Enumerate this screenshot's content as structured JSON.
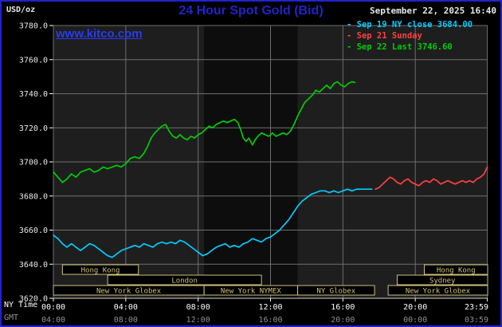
{
  "header": {
    "unit_label": "USD/oz",
    "title": "24 Hour Spot Gold (Bid)",
    "timestamp": "September 22, 2025 16:40",
    "watermark": "www.kitco.com"
  },
  "legend": {
    "items": [
      {
        "label": "- Sep 19 NY close 3684.00",
        "color": "#00ccff"
      },
      {
        "label": "- Sep 21 Sunday",
        "color": "#ff4040"
      },
      {
        "label": "- Sep 22 Last 3746.60",
        "color": "#00cc00"
      }
    ]
  },
  "colors": {
    "frame_border": "#2121cd",
    "background": "#000000",
    "plot_bg": "#1e1e1e",
    "nymex_band": "#0d0d0d",
    "grid": "#6e6e6e",
    "axis_line": "#cfcfcf",
    "tick_text": "#e8e8e8",
    "session": "#cdc07c",
    "title_blue": "#2222cc",
    "link_blue": "#2a3bf0",
    "gmt_text": "#909090"
  },
  "chart_data": {
    "type": "line",
    "title": "24 Hour Spot Gold (Bid)",
    "ylabel": "USD/oz",
    "ylim": [
      3620,
      3780
    ],
    "ytick_step": 20,
    "yticks": [
      3620,
      3640,
      3660,
      3680,
      3700,
      3720,
      3740,
      3760,
      3780
    ],
    "xlim_hours": [
      0,
      24
    ],
    "xtick_hours": [
      0,
      4,
      8,
      12,
      16,
      20,
      23.983
    ],
    "x_axis_rows": [
      {
        "name": "NY Time",
        "color": "#ffffff",
        "labels": [
          "00:00",
          "04:00",
          "08:00",
          "12:00",
          "16:00",
          "20:00",
          "23:59"
        ]
      },
      {
        "name": "GMT",
        "color": "#909090",
        "labels": [
          "04:00",
          "08:00",
          "12:00",
          "16:00",
          "20:00",
          "00:00",
          "03:59"
        ]
      }
    ],
    "nymex_band_hours": [
      8.33,
      13.5
    ],
    "grid": true,
    "legend_position": "top-right",
    "sessions": [
      {
        "row": 0,
        "start": 0.5,
        "end": 4.7,
        "label": "Hong Kong"
      },
      {
        "row": 0,
        "start": 20.5,
        "end": 24,
        "label": "Hong Kong"
      },
      {
        "row": 1,
        "start": 3,
        "end": 11.5,
        "label": "London"
      },
      {
        "row": 1,
        "start": 19,
        "end": 24,
        "label": "Sydney"
      },
      {
        "row": 2,
        "start": 0,
        "end": 8.33,
        "label": "New York Globex"
      },
      {
        "row": 2,
        "start": 8.33,
        "end": 13.5,
        "label": "New York NYMEX"
      },
      {
        "row": 2,
        "start": 13.5,
        "end": 17.75,
        "label": "NY Globex"
      },
      {
        "row": 2,
        "start": 18.5,
        "end": 24,
        "label": "New York Globex"
      }
    ],
    "series": [
      {
        "id": "sep19",
        "name": "Sep 19 NY close 3684.00",
        "color": "#00ccff",
        "points": [
          [
            0,
            3657
          ],
          [
            0.25,
            3655
          ],
          [
            0.5,
            3652
          ],
          [
            0.75,
            3650
          ],
          [
            1,
            3652
          ],
          [
            1.25,
            3650
          ],
          [
            1.5,
            3648
          ],
          [
            1.75,
            3650
          ],
          [
            2,
            3652
          ],
          [
            2.25,
            3651
          ],
          [
            2.5,
            3649
          ],
          [
            2.75,
            3647
          ],
          [
            3,
            3645
          ],
          [
            3.25,
            3644
          ],
          [
            3.5,
            3646
          ],
          [
            3.75,
            3648
          ],
          [
            4,
            3649
          ],
          [
            4.25,
            3650
          ],
          [
            4.5,
            3651
          ],
          [
            4.75,
            3650
          ],
          [
            5,
            3652
          ],
          [
            5.25,
            3651
          ],
          [
            5.5,
            3650
          ],
          [
            5.75,
            3652
          ],
          [
            6,
            3653
          ],
          [
            6.25,
            3652
          ],
          [
            6.5,
            3653
          ],
          [
            6.75,
            3652
          ],
          [
            7,
            3654
          ],
          [
            7.25,
            3653
          ],
          [
            7.5,
            3651
          ],
          [
            7.75,
            3649
          ],
          [
            8,
            3647
          ],
          [
            8.25,
            3645
          ],
          [
            8.5,
            3646
          ],
          [
            8.75,
            3648
          ],
          [
            9,
            3650
          ],
          [
            9.25,
            3651
          ],
          [
            9.5,
            3652
          ],
          [
            9.75,
            3650
          ],
          [
            10,
            3651
          ],
          [
            10.25,
            3650
          ],
          [
            10.5,
            3652
          ],
          [
            10.75,
            3653
          ],
          [
            11,
            3655
          ],
          [
            11.25,
            3654
          ],
          [
            11.5,
            3653
          ],
          [
            11.75,
            3655
          ],
          [
            12,
            3656
          ],
          [
            12.25,
            3658
          ],
          [
            12.5,
            3660
          ],
          [
            12.75,
            3663
          ],
          [
            13,
            3666
          ],
          [
            13.25,
            3670
          ],
          [
            13.5,
            3674
          ],
          [
            13.75,
            3677
          ],
          [
            14,
            3679
          ],
          [
            14.25,
            3681
          ],
          [
            14.5,
            3682
          ],
          [
            14.75,
            3683
          ],
          [
            15,
            3683
          ],
          [
            15.25,
            3682
          ],
          [
            15.5,
            3683
          ],
          [
            15.75,
            3682
          ],
          [
            16,
            3683
          ],
          [
            16.25,
            3684
          ],
          [
            16.5,
            3683
          ],
          [
            16.75,
            3684
          ],
          [
            17,
            3684
          ],
          [
            17.3,
            3684
          ],
          [
            17.6,
            3684
          ]
        ]
      },
      {
        "id": "sep21",
        "name": "Sep 21 Sunday",
        "color": "#ff4040",
        "points": [
          [
            17.8,
            3684
          ],
          [
            18,
            3685
          ],
          [
            18.2,
            3687
          ],
          [
            18.4,
            3689
          ],
          [
            18.6,
            3691
          ],
          [
            18.8,
            3690
          ],
          [
            19,
            3688
          ],
          [
            19.2,
            3687
          ],
          [
            19.4,
            3689
          ],
          [
            19.6,
            3690
          ],
          [
            19.8,
            3688
          ],
          [
            20,
            3687
          ],
          [
            20.2,
            3686
          ],
          [
            20.4,
            3688
          ],
          [
            20.6,
            3689
          ],
          [
            20.8,
            3688
          ],
          [
            21,
            3690
          ],
          [
            21.2,
            3689
          ],
          [
            21.4,
            3687
          ],
          [
            21.6,
            3688
          ],
          [
            21.8,
            3689
          ],
          [
            22,
            3688
          ],
          [
            22.2,
            3687
          ],
          [
            22.4,
            3688
          ],
          [
            22.6,
            3689
          ],
          [
            22.8,
            3688
          ],
          [
            23,
            3689
          ],
          [
            23.2,
            3688
          ],
          [
            23.4,
            3690
          ],
          [
            23.6,
            3691
          ],
          [
            23.8,
            3693
          ],
          [
            23.98,
            3697
          ]
        ]
      },
      {
        "id": "sep22",
        "name": "Sep 22 Last 3746.60",
        "color": "#00cc00",
        "points": [
          [
            0,
            3694
          ],
          [
            0.25,
            3691
          ],
          [
            0.5,
            3688
          ],
          [
            0.75,
            3690
          ],
          [
            1,
            3693
          ],
          [
            1.25,
            3691
          ],
          [
            1.5,
            3694
          ],
          [
            1.75,
            3695
          ],
          [
            2,
            3696
          ],
          [
            2.25,
            3694
          ],
          [
            2.5,
            3695
          ],
          [
            2.75,
            3697
          ],
          [
            3,
            3696
          ],
          [
            3.25,
            3697
          ],
          [
            3.5,
            3698
          ],
          [
            3.75,
            3697
          ],
          [
            4,
            3699
          ],
          [
            4.25,
            3702
          ],
          [
            4.5,
            3703
          ],
          [
            4.75,
            3702
          ],
          [
            5,
            3705
          ],
          [
            5.2,
            3709
          ],
          [
            5.4,
            3714
          ],
          [
            5.6,
            3717
          ],
          [
            5.8,
            3719
          ],
          [
            6,
            3721
          ],
          [
            6.2,
            3722
          ],
          [
            6.4,
            3718
          ],
          [
            6.6,
            3715
          ],
          [
            6.8,
            3714
          ],
          [
            7,
            3716
          ],
          [
            7.2,
            3714
          ],
          [
            7.4,
            3713
          ],
          [
            7.6,
            3715
          ],
          [
            7.8,
            3714
          ],
          [
            8,
            3716
          ],
          [
            8.2,
            3717
          ],
          [
            8.4,
            3719
          ],
          [
            8.6,
            3721
          ],
          [
            8.8,
            3720
          ],
          [
            9,
            3722
          ],
          [
            9.2,
            3723
          ],
          [
            9.4,
            3724
          ],
          [
            9.6,
            3723
          ],
          [
            9.8,
            3724
          ],
          [
            10,
            3725
          ],
          [
            10.2,
            3723
          ],
          [
            10.35,
            3719
          ],
          [
            10.5,
            3714
          ],
          [
            10.65,
            3712
          ],
          [
            10.8,
            3714
          ],
          [
            11,
            3710
          ],
          [
            11.15,
            3713
          ],
          [
            11.3,
            3715
          ],
          [
            11.5,
            3717
          ],
          [
            11.7,
            3716
          ],
          [
            11.9,
            3715
          ],
          [
            12.1,
            3717
          ],
          [
            12.3,
            3715
          ],
          [
            12.5,
            3716
          ],
          [
            12.7,
            3717
          ],
          [
            12.9,
            3716
          ],
          [
            13.1,
            3718
          ],
          [
            13.3,
            3722
          ],
          [
            13.5,
            3727
          ],
          [
            13.7,
            3731
          ],
          [
            13.9,
            3735
          ],
          [
            14.1,
            3737
          ],
          [
            14.3,
            3739
          ],
          [
            14.5,
            3742
          ],
          [
            14.7,
            3741
          ],
          [
            14.9,
            3743
          ],
          [
            15.1,
            3745
          ],
          [
            15.3,
            3743
          ],
          [
            15.5,
            3746
          ],
          [
            15.7,
            3747
          ],
          [
            15.9,
            3745
          ],
          [
            16.1,
            3744
          ],
          [
            16.3,
            3746
          ],
          [
            16.5,
            3747
          ],
          [
            16.67,
            3746.6
          ]
        ]
      }
    ]
  }
}
